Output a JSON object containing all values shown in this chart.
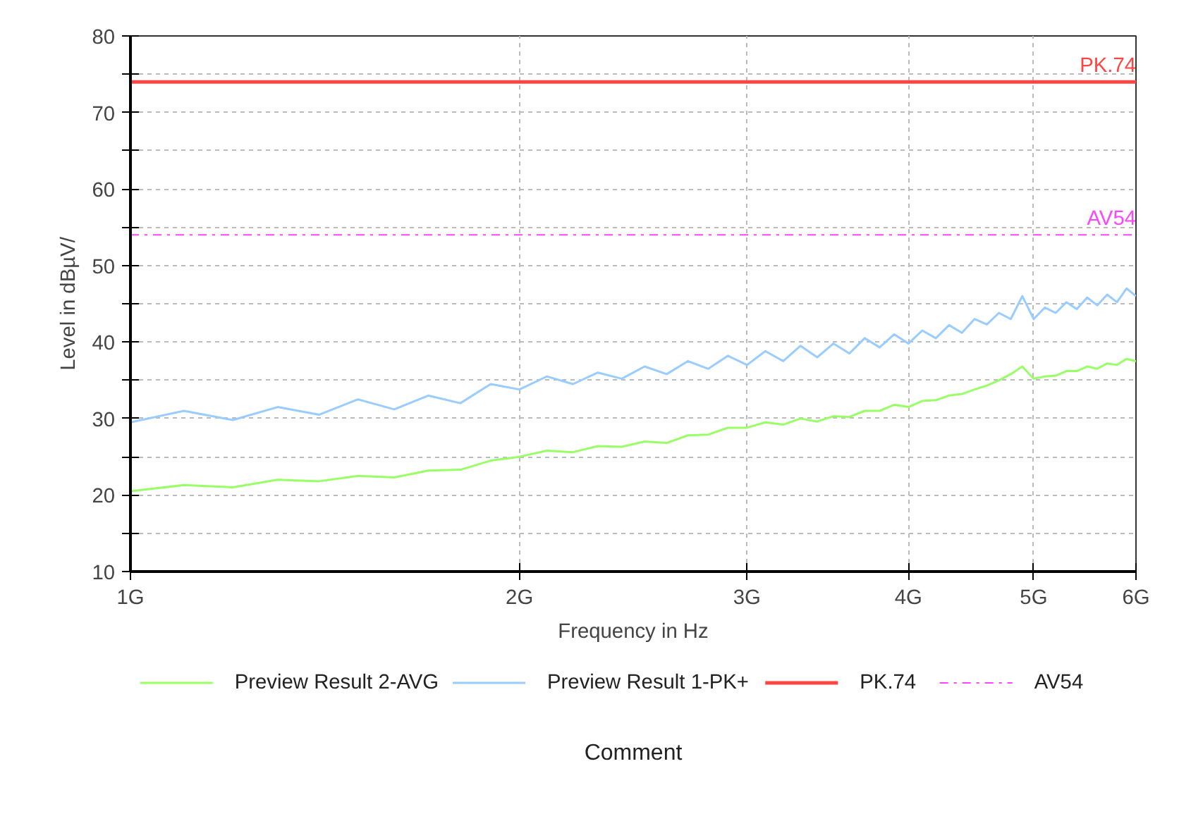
{
  "chart_data": {
    "type": "line",
    "xlabel": "Frequency in Hz",
    "ylabel": "Level in dBµV/",
    "log": "x",
    "grid": true,
    "legend": "bottom",
    "line_style": "solid",
    "marker": "none",
    "xlim": [
      1,
      6
    ],
    "ylim": [
      10,
      80
    ],
    "xticks": [
      {
        "value": 1,
        "label": "1G"
      },
      {
        "value": 2,
        "label": "2G"
      },
      {
        "value": 3,
        "label": "3G"
      },
      {
        "value": 4,
        "label": "4G"
      },
      {
        "value": 5,
        "label": "5G"
      },
      {
        "value": 6,
        "label": "6G"
      }
    ],
    "yticks": [
      10,
      {
        "value": 15,
        "label": null
      },
      20,
      {
        "value": 25,
        "label": null
      },
      30,
      {
        "value": 35,
        "label": null
      },
      40,
      {
        "value": 45,
        "label": null
      },
      50,
      {
        "value": 55,
        "label": null
      },
      60,
      {
        "value": 65,
        "label": null
      },
      70,
      {
        "value": 75,
        "label": null
      },
      80
    ],
    "x": [
      1.0,
      1.1,
      1.2,
      1.3,
      1.4,
      1.5,
      1.6,
      1.7,
      1.8,
      1.9,
      2.0,
      2.1,
      2.2,
      2.3,
      2.4,
      2.5,
      2.6,
      2.7,
      2.8,
      2.9,
      3.0,
      3.1,
      3.2,
      3.3,
      3.4,
      3.5,
      3.6,
      3.7,
      3.8,
      3.9,
      4.0,
      4.1,
      4.2,
      4.3,
      4.4,
      4.5,
      4.6,
      4.7,
      4.8,
      4.9,
      5.0,
      5.1,
      5.2,
      5.3,
      5.4,
      5.5,
      5.6,
      5.7,
      5.8,
      5.9,
      6.0
    ],
    "series": [
      {
        "name": "Preview Result 2-AVG",
        "color": "#99ff66",
        "values": [
          20.5,
          21.3,
          21,
          22,
          21.8,
          22.5,
          22.3,
          23.2,
          23.3,
          24.5,
          25,
          25.8,
          25.6,
          26.4,
          26.3,
          27,
          26.8,
          27.8,
          27.9,
          28.8,
          28.8,
          29.5,
          29.2,
          30,
          29.6,
          30.3,
          30.2,
          31,
          31,
          31.8,
          31.5,
          32.3,
          32.4,
          33,
          33.2,
          33.8,
          34.3,
          35,
          35.8,
          36.8,
          35.2,
          35.5,
          35.6,
          36.2,
          36.2,
          36.8,
          36.5,
          37.2,
          37,
          37.8,
          37.5
        ]
      },
      {
        "name": "Preview Result 1-PK+",
        "color": "#99ccff",
        "values": [
          29.5,
          31,
          29.8,
          31.5,
          30.5,
          32.5,
          31.2,
          33,
          32,
          34.5,
          33.8,
          35.5,
          34.5,
          36,
          35.2,
          36.8,
          35.8,
          37.5,
          36.5,
          38.2,
          37,
          38.8,
          37.5,
          39.5,
          38,
          39.8,
          38.5,
          40.5,
          39.3,
          41,
          39.8,
          41.5,
          40.5,
          42.2,
          41.2,
          43,
          42.3,
          43.8,
          43,
          46,
          43,
          44.5,
          43.8,
          45.2,
          44.3,
          45.8,
          44.8,
          46.2,
          45.2,
          47,
          46
        ]
      }
    ],
    "ref_lines": [
      {
        "axis": "y",
        "value": 74,
        "label": "PK.74",
        "color": "#ff4444",
        "line_style": "solid"
      },
      {
        "axis": "y",
        "value": 54,
        "label": "AV54",
        "color": "#ff44ff",
        "line_style": "dashdot"
      }
    ],
    "annotations": [
      "Comment"
    ]
  }
}
